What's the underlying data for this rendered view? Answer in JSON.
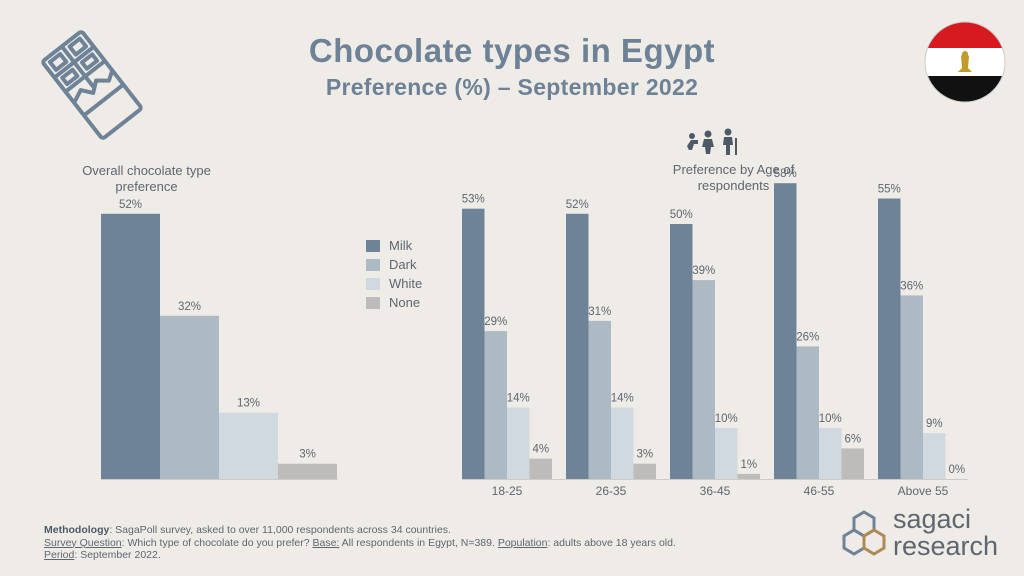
{
  "header": {
    "title": "Chocolate types in Egypt",
    "subtitle": "Preference (%) – September 2022"
  },
  "panels": {
    "overall_title": "Overall chocolate type preference",
    "age_title": "Preference by Age of respondents"
  },
  "colors": {
    "Milk": "#6e8398",
    "Dark": "#adbac3",
    "White": "#d0d9df",
    "None": "#bdbcbb",
    "text": "#5e6670",
    "title": "#6d8296"
  },
  "legend": [
    "Milk",
    "Dark",
    "White",
    "None"
  ],
  "chart_data": [
    {
      "type": "bar",
      "title": "Overall chocolate type preference",
      "categories": [
        "Milk",
        "Dark",
        "White",
        "None"
      ],
      "values": [
        52,
        32,
        13,
        3
      ],
      "unit": "%",
      "ylim": [
        0,
        60
      ]
    },
    {
      "type": "bar",
      "title": "Preference by Age of respondents",
      "categories": [
        "18-25",
        "26-35",
        "36-45",
        "46-55",
        "Above 55"
      ],
      "series": [
        {
          "name": "Milk",
          "values": [
            53,
            52,
            50,
            58,
            55
          ]
        },
        {
          "name": "Dark",
          "values": [
            29,
            31,
            39,
            26,
            36
          ]
        },
        {
          "name": "White",
          "values": [
            14,
            14,
            10,
            10,
            9
          ]
        },
        {
          "name": "None",
          "values": [
            4,
            3,
            1,
            6,
            0
          ]
        }
      ],
      "unit": "%",
      "ylim": [
        0,
        60
      ]
    }
  ],
  "footer": {
    "methodology_label": "Methodology",
    "methodology_text": ": SagaPoll survey, asked to over 11,000 respondents across 34 countries.",
    "question_label": "Survey Question",
    "question_text": ": Which type of chocolate do you prefer? ",
    "base_label": "Base:",
    "base_text": " All respondents in Egypt, N=389. ",
    "population_label": "Population",
    "population_text": ": adults above 18 years old.",
    "period_label": "Period",
    "period_text": ": September 2022."
  },
  "brand": {
    "line1": "sagaci",
    "line2": "research"
  },
  "icons": {
    "top_left": "chocolate-bar-icon",
    "top_right": "egypt-flag-icon",
    "age": "age-groups-icon",
    "logo": "hexagon-logo-icon"
  }
}
